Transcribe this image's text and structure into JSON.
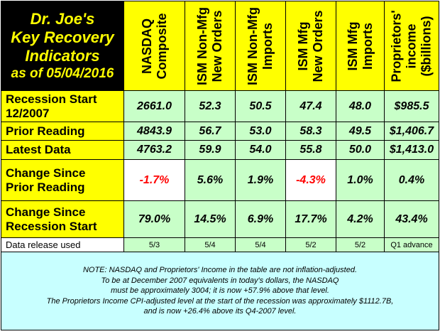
{
  "title": {
    "line1": "Dr. Joe's",
    "line2": "Key Recovery",
    "line3": "Indicators",
    "line4": "as of 05/04/2016"
  },
  "columns": [
    {
      "line1": "NASDAQ",
      "line2": "Composite",
      "line3": ""
    },
    {
      "line1": "ISM Non-Mfg",
      "line2": "New Orders",
      "line3": ""
    },
    {
      "line1": "ISM Non-Mfg",
      "line2": "Imports",
      "line3": ""
    },
    {
      "line1": "ISM Mfg",
      "line2": "New Orders",
      "line3": ""
    },
    {
      "line1": "ISM Mfg",
      "line2": "Imports",
      "line3": ""
    },
    {
      "line1": "Proprietors'",
      "line2": "income",
      "line3": "($billions)"
    }
  ],
  "rows": [
    {
      "label1": "Recession Start",
      "label2": "12/2007",
      "values": [
        "2661.0",
        "52.3",
        "50.5",
        "47.4",
        "48.0",
        "$985.5"
      ]
    },
    {
      "label1": "Prior Reading",
      "label2": "",
      "values": [
        "4843.9",
        "56.7",
        "53.0",
        "58.3",
        "49.5",
        "$1,406.7"
      ]
    },
    {
      "label1": "Latest Data",
      "label2": "",
      "values": [
        "4763.2",
        "59.9",
        "54.0",
        "55.8",
        "50.0",
        "$1,413.0"
      ]
    },
    {
      "label1": "Change Since",
      "label2": "Prior Reading",
      "values": [
        "-1.7%",
        "5.6%",
        "1.9%",
        "-4.3%",
        "1.0%",
        "0.4%"
      ]
    },
    {
      "label1": "Change Since",
      "label2": "Recession Start",
      "values": [
        "79.0%",
        "14.5%",
        "6.9%",
        "17.7%",
        "4.2%",
        "43.4%"
      ]
    }
  ],
  "release": {
    "label": "Data release used",
    "values": [
      "5/3",
      "5/4",
      "5/4",
      "5/2",
      "5/2",
      "Q1 advance"
    ]
  },
  "note": {
    "line1": "NOTE: NASDAQ and Proprietors' Income in the table are not inflation-adjusted.",
    "line2": "To be at December 2007 equivalents in today's dollars, the NASDAQ",
    "line3": "must be approximately 3004; it is now +57.9% above that level.",
    "line4": "The Proprietors Income CPI-adjusted level at the start of the recession was approximately $1112.7B,",
    "line5": "and is now +26.4% above its Q4-2007 level."
  },
  "colors": {
    "header_yellow": "#ffff00",
    "value_green": "#c8ffc8",
    "note_cyan": "#c8ffff",
    "negative_red": "#ff0000",
    "title_bg": "#000000"
  }
}
